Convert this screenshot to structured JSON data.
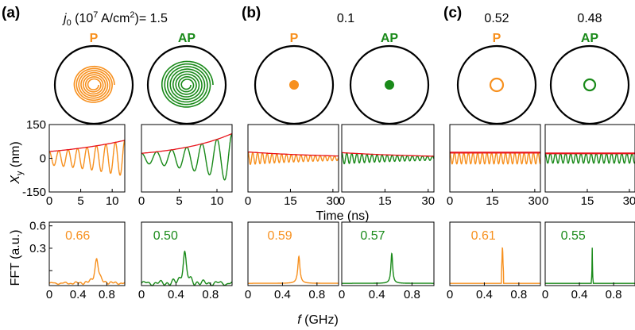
{
  "colors": {
    "P": "#f7901e",
    "AP": "#1a8a1a",
    "fit": "#e8141c",
    "frame": "#000000"
  },
  "labels": {
    "panel_a": "(a)",
    "panel_b": "(b)",
    "panel_c": "(c)",
    "j0_prefix": "j",
    "j0_sub": "0",
    "j0_units": " (10",
    "j0_exp": "7",
    "j0_tail": " A/cm",
    "j0_sq": "2",
    "j0_eq": ")= 1.5",
    "current_b": "0.1",
    "current_c_P": "0.52",
    "current_c_AP": "0.48",
    "P": "P",
    "AP": "AP",
    "ylabel_top_main": "X",
    "ylabel_top_sub": "y",
    "ylabel_top_unit": " (nm)",
    "ylabel_bottom": "FFT (a.u.)",
    "xlabel_time": "Time (ns)",
    "xlabel_freq_f": "f",
    "xlabel_freq_unit": " (GHz)"
  },
  "chart_data": [
    {
      "type": "line",
      "panel": "(a)",
      "state": "P",
      "current": "1.5",
      "xlabel": "Time (ns)",
      "ylabel": "X_y (nm)",
      "xlim": [
        0,
        12
      ],
      "ylim": [
        -150,
        150
      ],
      "xticks": [
        0,
        5,
        10
      ],
      "yticks": [
        150,
        0,
        -150
      ],
      "series": [
        {
          "kind": "oscillation",
          "period": 1.5,
          "amplitude": [
            30,
            80
          ]
        },
        {
          "kind": "envelope",
          "x": [
            0,
            12
          ],
          "y": [
            30,
            80
          ]
        }
      ]
    },
    {
      "type": "line",
      "panel": "(a)",
      "state": "AP",
      "current": "1.5",
      "xlabel": "Time (ns)",
      "xlim": [
        0,
        12
      ],
      "ylim": [
        -150,
        150
      ],
      "xticks": [
        0,
        5,
        10
      ],
      "series": [
        {
          "kind": "oscillation",
          "period": 2.0,
          "amplitude": [
            22,
            110
          ]
        },
        {
          "kind": "envelope",
          "x": [
            0,
            12
          ],
          "y": [
            22,
            110
          ]
        }
      ]
    },
    {
      "type": "line",
      "panel": "(b)",
      "state": "P",
      "current": "0.1",
      "xlabel": "Time (ns)",
      "xlim": [
        0,
        32
      ],
      "ylim": [
        -150,
        150
      ],
      "xticks": [
        0,
        15,
        30
      ],
      "series": [
        {
          "kind": "oscillation",
          "period": 1.7,
          "amplitude": [
            28,
            10
          ]
        },
        {
          "kind": "envelope",
          "x": [
            0,
            32
          ],
          "y": [
            28,
            10
          ]
        }
      ]
    },
    {
      "type": "line",
      "panel": "(b)",
      "state": "AP",
      "current": "0.1",
      "xlabel": "Time (ns)",
      "xlim": [
        0,
        32
      ],
      "ylim": [
        -150,
        150
      ],
      "xticks": [
        0,
        15,
        30
      ],
      "series": [
        {
          "kind": "oscillation",
          "period": 1.75,
          "amplitude": [
            25,
            9
          ]
        },
        {
          "kind": "envelope",
          "x": [
            0,
            32
          ],
          "y": [
            25,
            9
          ]
        }
      ]
    },
    {
      "type": "line",
      "panel": "(c)",
      "state": "P",
      "current": "0.52",
      "xlabel": "Time (ns)",
      "xlim": [
        0,
        32
      ],
      "ylim": [
        -150,
        150
      ],
      "xticks": [
        0,
        15,
        30
      ],
      "series": [
        {
          "kind": "oscillation",
          "period": 1.64,
          "amplitude": [
            25,
            25
          ]
        },
        {
          "kind": "envelope",
          "x": [
            0,
            32
          ],
          "y": [
            25,
            25
          ]
        }
      ]
    },
    {
      "type": "line",
      "panel": "(c)",
      "state": "AP",
      "current": "0.48",
      "xlabel": "Time (ns)",
      "xlim": [
        0,
        32
      ],
      "ylim": [
        -150,
        150
      ],
      "xticks": [
        0,
        15,
        30
      ],
      "series": [
        {
          "kind": "oscillation",
          "period": 1.82,
          "amplitude": [
            22,
            22
          ]
        },
        {
          "kind": "envelope",
          "x": [
            0,
            32
          ],
          "y": [
            22,
            22
          ]
        }
      ]
    },
    {
      "type": "line",
      "panel": "(a)",
      "state": "P",
      "xlabel": "f (GHz)",
      "ylabel": "FFT (a.u.)",
      "xlim": [
        0,
        1.05
      ],
      "ylim": [
        -0.2,
        0.65
      ],
      "xticks": [
        0,
        0.4,
        0.8
      ],
      "yticks": [
        0.6,
        0.3,
        0
      ],
      "peak": 0.66,
      "peak_label": "0.66",
      "height": 0.33,
      "width": 0.03,
      "noise": 0.02
    },
    {
      "type": "line",
      "panel": "(a)",
      "state": "AP",
      "xlabel": "f (GHz)",
      "xlim": [
        0,
        1.05
      ],
      "ylim": [
        -0.2,
        0.65
      ],
      "xticks": [
        0,
        0.4,
        0.8
      ],
      "peak": 0.5,
      "peak_label": "0.50",
      "height": 0.4,
      "width": 0.025,
      "noise": 0.04
    },
    {
      "type": "line",
      "panel": "(b)",
      "state": "P",
      "xlabel": "f (GHz)",
      "xlim": [
        0,
        1.05
      ],
      "ylim": [
        -0.2,
        0.65
      ],
      "xticks": [
        0,
        0.4,
        0.8
      ],
      "peak": 0.59,
      "peak_label": "0.59",
      "height": 0.36,
      "width": 0.015,
      "noise": 0
    },
    {
      "type": "line",
      "panel": "(b)",
      "state": "AP",
      "xlabel": "f (GHz)",
      "xlim": [
        0,
        1.05
      ],
      "ylim": [
        -0.2,
        0.65
      ],
      "xticks": [
        0,
        0.4,
        0.8
      ],
      "peak": 0.57,
      "peak_label": "0.57",
      "height": 0.4,
      "width": 0.012,
      "noise": 0
    },
    {
      "type": "line",
      "panel": "(c)",
      "state": "P",
      "xlabel": "f (GHz)",
      "xlim": [
        0,
        1.05
      ],
      "ylim": [
        -0.2,
        0.65
      ],
      "xticks": [
        0,
        0.4,
        0.8
      ],
      "peak": 0.61,
      "peak_label": "0.61",
      "height": 0.48,
      "width": 0.008,
      "noise": 0
    },
    {
      "type": "line",
      "panel": "(c)",
      "state": "AP",
      "xlabel": "f (GHz)",
      "xlim": [
        0,
        1.05
      ],
      "ylim": [
        -0.2,
        0.65
      ],
      "xticks": [
        0,
        0.4,
        0.8
      ],
      "peak": 0.55,
      "peak_label": "0.55",
      "height": 0.48,
      "width": 0.003,
      "noise": 0
    }
  ]
}
